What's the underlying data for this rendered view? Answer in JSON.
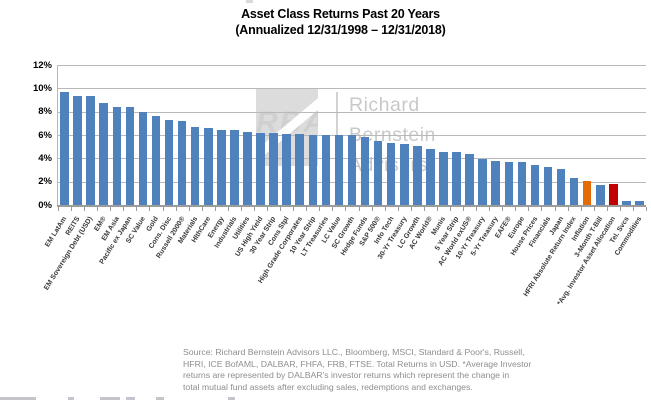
{
  "title": {
    "line1": "Asset Class Returns Past 20 Years",
    "line2": "(Annualized 12/31/1998 – 12/31/2018)"
  },
  "watermark": {
    "logo_text": "RBA",
    "lines": [
      "Richard",
      "Bernstein",
      "Advisors"
    ]
  },
  "source_note": {
    "lines": [
      "Source: Richard Bernstein Advisors LLC., Bloomberg, MSCI, Standard & Poor's, Russell,",
      "HFRI, ICE BofAML, DALBAR, FHFA, FRB, FTSE.  Total Returns in USD. *Average Investor",
      "returns are represented by DALBAR's investor returns which represent the change in",
      "total mutual fund assets after excluding sales, redemptions and exchanges."
    ]
  },
  "chart_data": {
    "type": "bar",
    "title": "Asset Class Returns Past 20 Years (Annualized 12/31/1998 – 12/31/2018)",
    "xlabel": "",
    "ylabel": "",
    "ylim": [
      0,
      12
    ],
    "grid": true,
    "legend": "none",
    "y_ticks": [
      "12%",
      "10%",
      "8%",
      "6%",
      "4%",
      "2%",
      "0%"
    ],
    "categories": [
      "EM LatAm",
      "REITS",
      "EM Sovereign Debt (USD)",
      "EM®",
      "EM Asia",
      "Pacific ex Japan",
      "SC Value",
      "Gold",
      "Cons. Disc",
      "Russell 2000®",
      "Materials",
      "HlthCare",
      "Energy",
      "Industrials",
      "Utilities",
      "US High Yield",
      "30 Year Strip",
      "Cons Stpl",
      "High Grade Corporates",
      "10 Year Strip",
      "LT Treasuries",
      "LC Value",
      "SC Growth",
      "Hedge Funds",
      "S&P 500®",
      "Info Tech",
      "30-Yr Treasury",
      "LC Growth",
      "AC World®",
      "Munis",
      "5 Year Strip",
      "AC World exUS®",
      "10-Yr Treasury",
      "5-Yr Treasury",
      "EAFE®",
      "Europe",
      "House Prices",
      "Financials",
      "Japan",
      "HFRI Absolute Return Index",
      "Inflation",
      "3-Month T-Bill",
      "*Avg. Investor Asset Allocation",
      "Tel. Svcs",
      "Commodities"
    ],
    "values": [
      9.8,
      9.4,
      9.4,
      8.85,
      8.5,
      8.45,
      8.1,
      7.7,
      7.35,
      7.3,
      6.8,
      6.7,
      6.55,
      6.5,
      6.35,
      6.3,
      6.3,
      6.2,
      6.15,
      6.1,
      6.1,
      6.1,
      6.05,
      5.9,
      5.6,
      5.4,
      5.35,
      5.15,
      4.85,
      4.65,
      4.6,
      4.45,
      4.05,
      3.85,
      3.8,
      3.75,
      3.55,
      3.35,
      3.15,
      2.4,
      2.15,
      1.8,
      1.85,
      0.4,
      0.45
    ],
    "bar_color_default": "#4f81bd",
    "bar_color_overrides": {
      "Inflation": "#e36c09",
      "*Avg. Investor Asset Allocation": "#c00000"
    },
    "gridline_color": "#b9b9b9"
  }
}
